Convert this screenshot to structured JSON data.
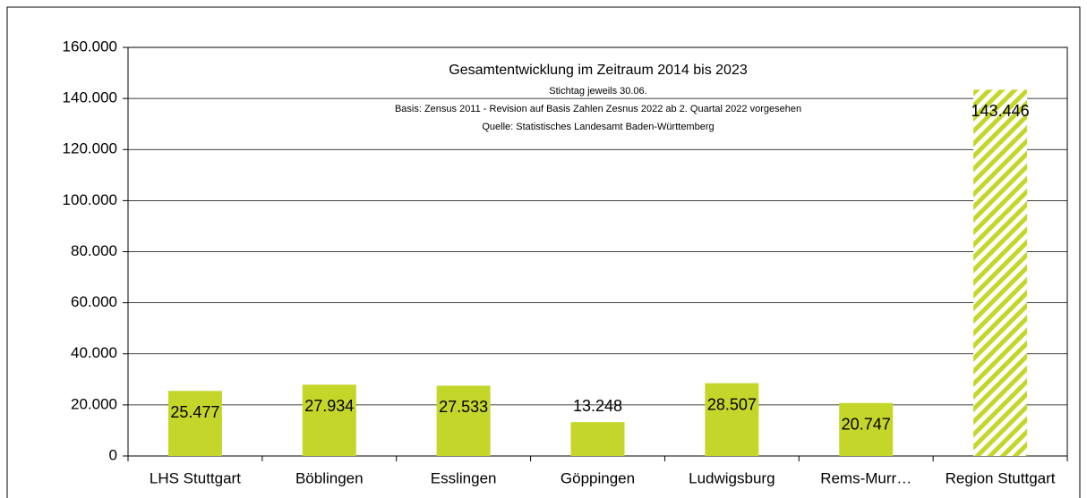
{
  "chart_data": {
    "type": "bar",
    "title": "Gesamtentwicklung im Zeitraum 2014 bis 2023",
    "subtitle": [
      "Stichtag jeweils 30.06.",
      "Basis: Zensus 2011 - Revision auf Basis Zahlen Zesnus 2022 ab 2. Quartal 2022 vorgesehen",
      "Quelle: Statistisches Landesamt Baden-Württemberg"
    ],
    "categories": [
      "LHS Stuttgart",
      "Böblingen",
      "Esslingen",
      "Göppingen",
      "Ludwigsburg",
      "Rems-Murr…",
      "Region Stuttgart"
    ],
    "values": [
      25477,
      27934,
      27533,
      13248,
      28507,
      20747,
      143446
    ],
    "value_labels": [
      "25.477",
      "27.934",
      "27.533",
      "13.248",
      "28.507",
      "20.747",
      "143.446"
    ],
    "hatched": [
      false,
      false,
      false,
      false,
      false,
      false,
      true
    ],
    "color": "#c5d62b",
    "ylim": [
      0,
      160000
    ],
    "yticks": [
      0,
      {
        "value": 20000,
        "label": "20.000"
      },
      {
        "value": 40000,
        "label": "40.000"
      },
      {
        "value": 60000,
        "label": "60.000"
      },
      {
        "value": 80000,
        "label": "80.000"
      },
      {
        "value": 100000,
        "label": "100.000"
      },
      {
        "value": 120000,
        "label": "120.000"
      },
      {
        "value": 140000,
        "label": "140.000"
      },
      {
        "value": 160000,
        "label": "160.000"
      }
    ],
    "grid": true
  }
}
